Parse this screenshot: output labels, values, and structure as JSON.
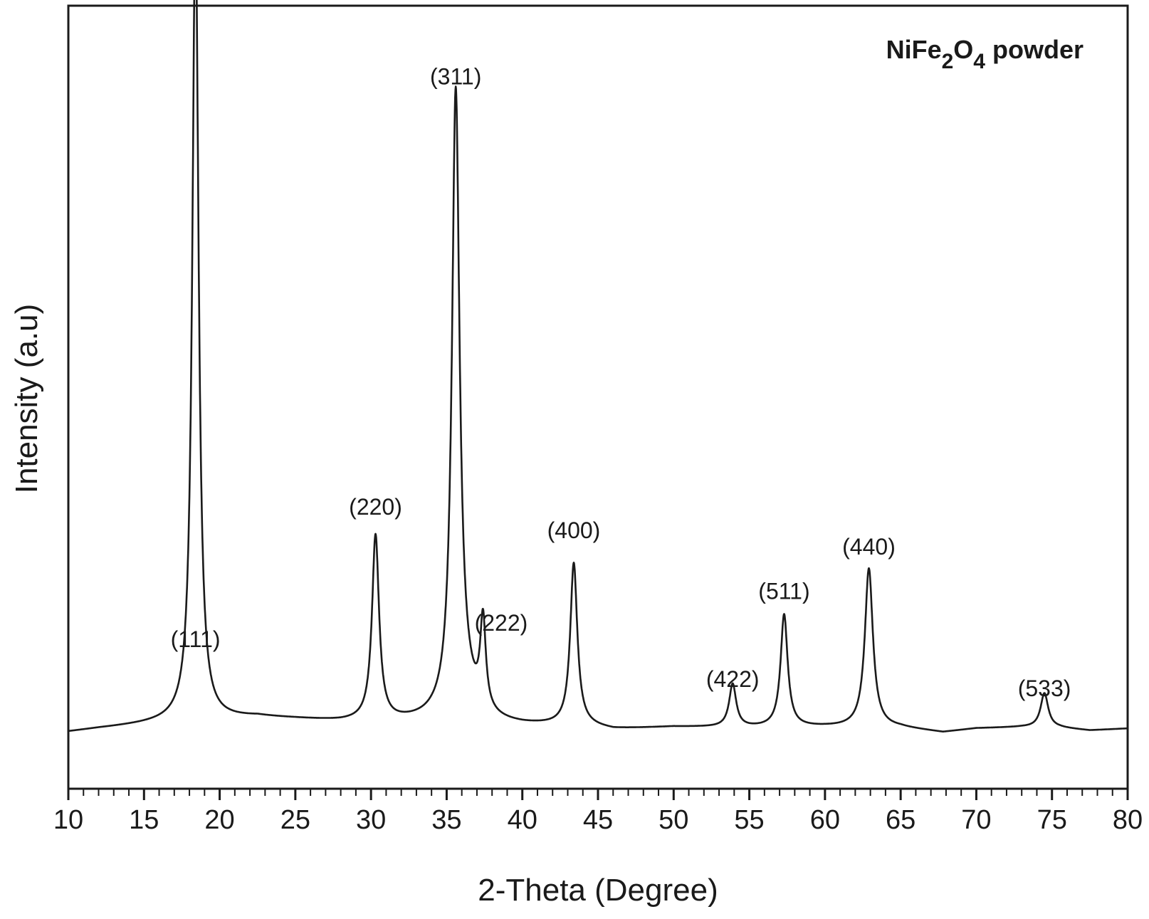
{
  "chart_data": {
    "type": "line",
    "title": "",
    "legend_text": {
      "main": "NiFe",
      "sub1": "2",
      "mid": "O",
      "sub2": "4",
      "tail": " powder"
    },
    "legend_position": "top-right",
    "xlabel": "2-Theta (Degree)",
    "ylabel": "Intensity (a.u)",
    "xlim": [
      10,
      80
    ],
    "ylim": [
      0,
      1000
    ],
    "grid": false,
    "x_ticks": [
      "10",
      "15",
      "20",
      "25",
      "30",
      "35",
      "40",
      "45",
      "50",
      "55",
      "60",
      "65",
      "70",
      "75",
      "80"
    ],
    "x_tick_values": [
      10,
      15,
      20,
      25,
      30,
      35,
      40,
      45,
      50,
      55,
      60,
      65,
      70,
      75,
      80
    ],
    "minor_tick_step": 1,
    "line_color": "#1a1a1a",
    "baseline": [
      {
        "x": 10,
        "y": 45
      },
      {
        "x": 12,
        "y": 50
      },
      {
        "x": 15,
        "y": 56
      },
      {
        "x": 17.5,
        "y": 61
      },
      {
        "x": 19.5,
        "y": 62
      },
      {
        "x": 22.5,
        "y": 67
      },
      {
        "x": 25,
        "y": 64
      },
      {
        "x": 28,
        "y": 60
      },
      {
        "x": 31.5,
        "y": 59
      },
      {
        "x": 34,
        "y": 60
      },
      {
        "x": 40,
        "y": 54
      },
      {
        "x": 44,
        "y": 53
      },
      {
        "x": 46,
        "y": 48
      },
      {
        "x": 50,
        "y": 52
      },
      {
        "x": 55,
        "y": 51
      },
      {
        "x": 60,
        "y": 52
      },
      {
        "x": 65,
        "y": 51
      },
      {
        "x": 67.8,
        "y": 44
      },
      {
        "x": 70,
        "y": 50
      },
      {
        "x": 73,
        "y": 52
      },
      {
        "x": 75.5,
        "y": 51
      },
      {
        "x": 77.5,
        "y": 47
      },
      {
        "x": 80,
        "y": 50
      }
    ],
    "peaks": [
      {
        "label": "(111)",
        "x": 18.4,
        "height": 1210,
        "width": 0.25
      },
      {
        "label": "(220)",
        "x": 30.3,
        "height": 280,
        "width": 0.28
      },
      {
        "label": "(311)",
        "x": 35.6,
        "height": 930,
        "width": 0.3
      },
      {
        "label": "(222)",
        "x": 37.4,
        "height": 135,
        "width": 0.22
      },
      {
        "label": "(400)",
        "x": 43.4,
        "height": 245,
        "width": 0.28
      },
      {
        "label": "(422)",
        "x": 53.9,
        "height": 65,
        "width": 0.28
      },
      {
        "label": "(511)",
        "x": 57.3,
        "height": 170,
        "width": 0.28
      },
      {
        "label": "(440)",
        "x": 62.9,
        "height": 240,
        "width": 0.32
      },
      {
        "label": "(533)",
        "x": 74.5,
        "height": 52,
        "width": 0.3
      }
    ],
    "broad_shoulder": {
      "x": 36.1,
      "height": 35,
      "width": 1.0
    },
    "peak_labels": [
      {
        "text": "(111)",
        "x": 18.4,
        "y": 160
      },
      {
        "text": "(220)",
        "x": 30.3,
        "y": 360
      },
      {
        "text": "(311)",
        "x": 35.6,
        "y": 1010
      },
      {
        "text": "(222)",
        "x": 38.6,
        "y": 185
      },
      {
        "text": "(400)",
        "x": 43.4,
        "y": 325
      },
      {
        "text": "(422)",
        "x": 53.9,
        "y": 100
      },
      {
        "text": "(511)",
        "x": 57.3,
        "y": 233
      },
      {
        "text": "(440)",
        "x": 62.9,
        "y": 300
      },
      {
        "text": "(533)",
        "x": 74.5,
        "y": 86
      }
    ]
  }
}
